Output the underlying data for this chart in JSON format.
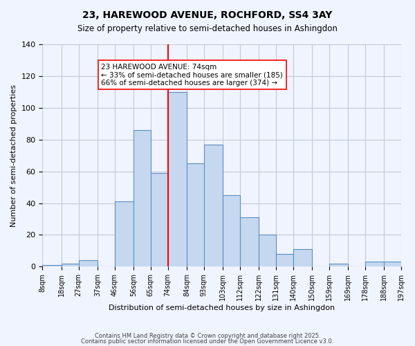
{
  "title": "23, HAREWOOD AVENUE, ROCHFORD, SS4 3AY",
  "subtitle": "Size of property relative to semi-detached houses in Ashingdon",
  "xlabel": "Distribution of semi-detached houses by size in Ashingdon",
  "ylabel": "Number of semi-detached properties",
  "bin_labels": [
    "8sqm",
    "18sqm",
    "27sqm",
    "37sqm",
    "46sqm",
    "56sqm",
    "65sqm",
    "74sqm",
    "84sqm",
    "93sqm",
    "103sqm",
    "112sqm",
    "122sqm",
    "131sqm",
    "140sqm",
    "150sqm",
    "159sqm",
    "169sqm",
    "178sqm",
    "188sqm",
    "197sqm"
  ],
  "bin_edges": [
    8,
    18,
    27,
    37,
    46,
    56,
    65,
    74,
    84,
    93,
    103,
    112,
    122,
    131,
    140,
    150,
    159,
    169,
    178,
    188,
    197
  ],
  "bar_heights": [
    1,
    2,
    4,
    0,
    41,
    86,
    59,
    110,
    65,
    77,
    45,
    31,
    20,
    8,
    11,
    0,
    2,
    0,
    3,
    3
  ],
  "bar_color": "#c5d8f0",
  "bar_edge_color": "#5a8fc0",
  "marker_value": 74,
  "marker_label": "23 HAREWOOD AVENUE: 74sqm",
  "smaller_pct": "33%",
  "smaller_count": 185,
  "larger_pct": "66%",
  "larger_count": 374,
  "ylim": [
    0,
    140
  ],
  "yticks": [
    0,
    20,
    40,
    60,
    80,
    100,
    120,
    140
  ],
  "background_color": "#f0f4ff",
  "grid_color": "#c0c8d8",
  "footer1": "Contains HM Land Registry data © Crown copyright and database right 2025.",
  "footer2": "Contains public sector information licensed under the Open Government Licence v3.0."
}
